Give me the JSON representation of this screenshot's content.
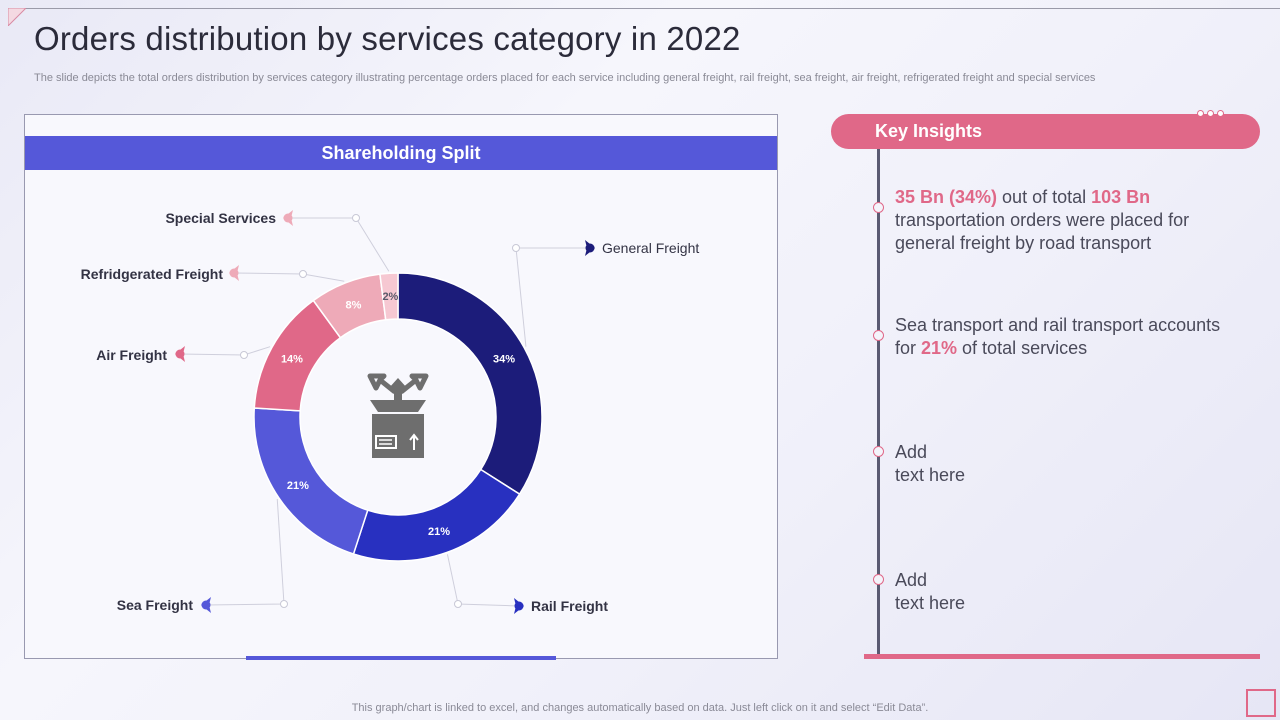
{
  "page": {
    "title": "Orders distribution by services category in 2022",
    "subtitle": "The slide depicts the total orders distribution by services category illustrating percentage orders placed for each service including general freight, rail freight, sea freight, air freight, refrigerated freight and special services",
    "footer": "This graph/chart is linked to excel,  and changes automatically based on data. Just left click on it and select “Edit Data”."
  },
  "chart_header": "Shareholding Split",
  "chart_data": {
    "type": "pie",
    "variant": "donut",
    "title": "Shareholding Split",
    "categories": [
      "General Freight",
      "Rail Freight",
      "Sea Freight",
      "Air Freight",
      "Refridgerated Freight",
      "Special Services"
    ],
    "values": [
      34,
      21,
      21,
      14,
      8,
      2
    ],
    "labels": [
      "34%",
      "21%",
      "21%",
      "14%",
      "8%",
      "2%"
    ],
    "colors": [
      "#1c1c7a",
      "#2830c0",
      "#5558d9",
      "#e06888",
      "#eeaab8",
      "#f6c8d2"
    ],
    "center_icon": "package-distribution-icon"
  },
  "insights": {
    "header": "Key Insights",
    "items": [
      {
        "hl1": "35 Bn (34%)",
        "t1": " out of total ",
        "hl2": "103 Bn",
        "t2": " transportation orders were placed for general freight by road transport"
      },
      {
        "t1": "Sea transport and rail transport accounts for ",
        "hl1": "21%",
        "t2": " of total services"
      },
      {
        "line1": "Add",
        "line2": "text here"
      },
      {
        "line1": "Add",
        "line2": "text here"
      }
    ]
  }
}
